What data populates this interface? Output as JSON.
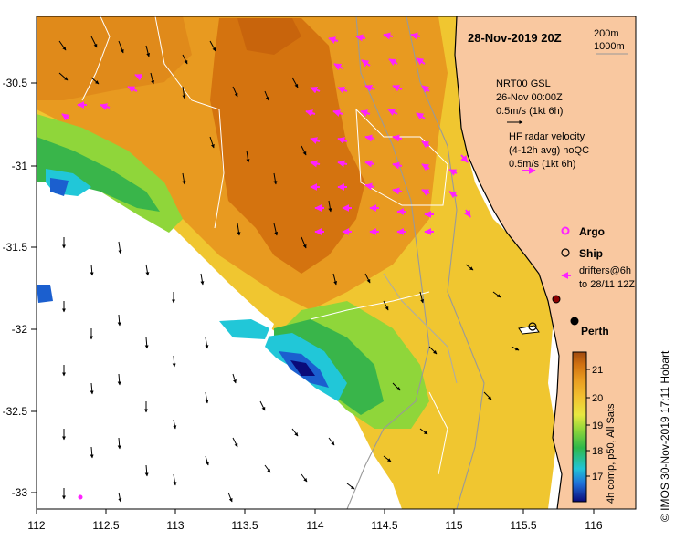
{
  "title": "28-Nov-2019 20Z",
  "isobath_labels": [
    "200m",
    "1000m"
  ],
  "altimetry_label": [
    "NRT00 GSL",
    "26-Nov 00:00Z",
    "0.5m/s (1kt 6h)"
  ],
  "radar_label": [
    "HF radar velocity",
    "(4-12h avg) noQC",
    "0.5m/s (1kt 6h)"
  ],
  "legend": {
    "argo": "Argo",
    "ship": "Ship",
    "drifters": [
      "drifters@6h",
      "to 28/11 12Z"
    ]
  },
  "city": "Perth",
  "x_ticks": [
    "112",
    "112.5",
    "113",
    "113.5",
    "114",
    "114.5",
    "115",
    "115.5",
    "116"
  ],
  "y_ticks": [
    "-30.5",
    "-31",
    "-31.5",
    "-32",
    "-32.5",
    "-33"
  ],
  "colorbar": {
    "ticks": [
      "21",
      "20",
      "19",
      "18",
      "17"
    ],
    "caption": "4h comp, p50, All Sats",
    "colors": [
      "#0a0a7a",
      "#1e6fd8",
      "#22c4d6",
      "#2fb84a",
      "#8fd63a",
      "#e8e840",
      "#f2c030",
      "#e89a20",
      "#d07010",
      "#a04a10"
    ]
  },
  "credit": "© IMOS 30-Nov-2019 17:11 Hobart",
  "colors": {
    "land": "#f9c8a0",
    "warm": "#d4730f",
    "orange": "#e89a20",
    "yellow": "#f0c630",
    "green": "#39b54a",
    "cyan": "#21c7d8",
    "blue": "#1b5fcf",
    "magenta": "#ff22ff"
  }
}
